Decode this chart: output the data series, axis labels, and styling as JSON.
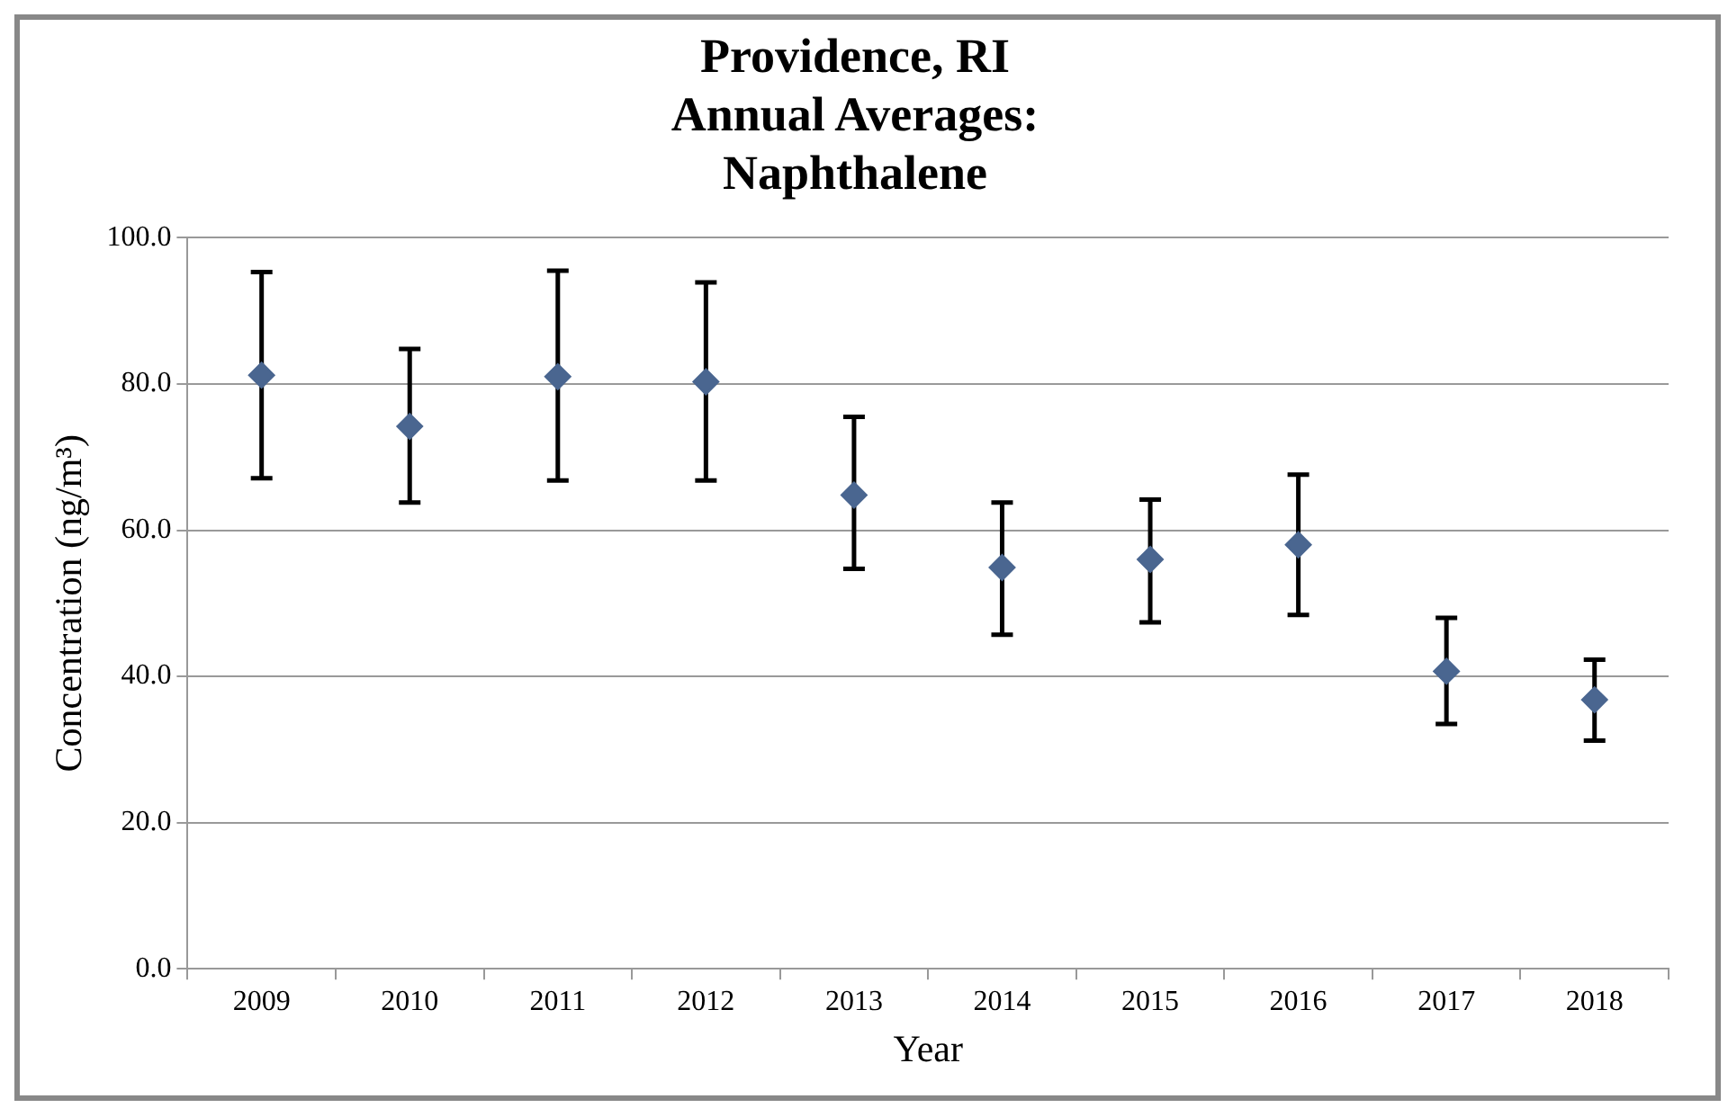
{
  "chart_data": {
    "type": "scatter",
    "title": [
      "Providence, RI",
      "Annual Averages:",
      "Naphthalene"
    ],
    "xlabel": "Year",
    "ylabel": "Concentration (ng/m³)",
    "categories": [
      "2009",
      "2010",
      "2011",
      "2012",
      "2013",
      "2014",
      "2015",
      "2016",
      "2017",
      "2018"
    ],
    "series": [
      {
        "color": "#4a6690",
        "values": [
          81.2,
          74.2,
          81.0,
          80.3,
          64.8,
          54.9,
          56.0,
          58.0,
          40.7,
          36.8
        ],
        "errors": [
          [
            67.1,
            95.3
          ],
          [
            63.8,
            84.8
          ],
          [
            66.8,
            95.5
          ],
          [
            66.8,
            93.9
          ],
          [
            54.7,
            75.5
          ],
          [
            45.7,
            63.8
          ],
          [
            47.4,
            64.2
          ],
          [
            48.4,
            67.6
          ],
          [
            33.5,
            48.0
          ],
          [
            31.2,
            42.3
          ]
        ]
      }
    ],
    "ylim": [
      0,
      100
    ],
    "yticks": [
      {
        "value": 0,
        "label": "0.0"
      },
      {
        "value": 20,
        "label": "20.0"
      },
      {
        "value": 40,
        "label": "40.0"
      },
      {
        "value": 60,
        "label": "60.0"
      },
      {
        "value": 80,
        "label": "80.0"
      },
      {
        "value": 100,
        "label": "100.0"
      }
    ],
    "grid": "y",
    "legend": false,
    "marker": "diamond"
  }
}
